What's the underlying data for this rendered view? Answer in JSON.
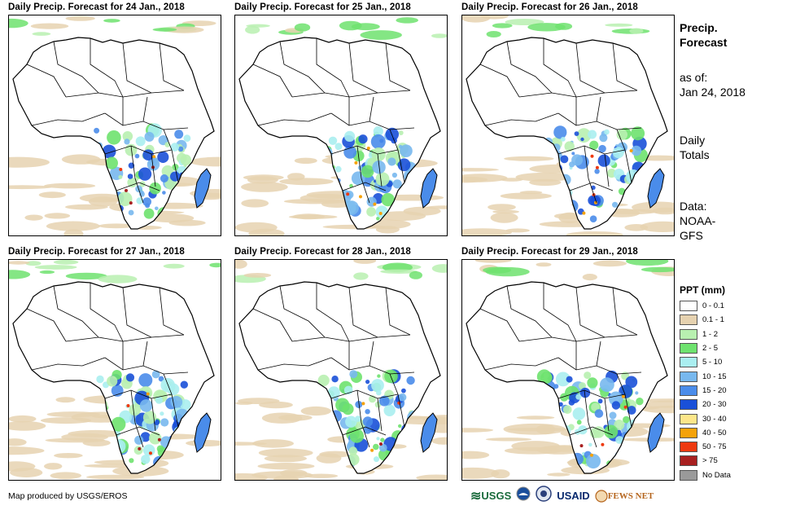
{
  "panels": [
    {
      "title": "Daily Precip. Forecast for 24 Jan., 2018"
    },
    {
      "title": "Daily Precip. Forecast for 25 Jan., 2018"
    },
    {
      "title": "Daily Precip. Forecast for 26 Jan., 2018"
    },
    {
      "title": "Daily Precip. Forecast for 27 Jan., 2018"
    },
    {
      "title": "Daily Precip. Forecast for 28 Jan., 2018"
    },
    {
      "title": "Daily Precip. Forecast for 29 Jan., 2018"
    }
  ],
  "side": {
    "title_line1": "Precip.",
    "title_line2": "Forecast",
    "asof_label": "as of:",
    "asof_date": "Jan 24, 2018",
    "daily_line1": "Daily",
    "daily_line2": "Totals",
    "data_line1": "Data:",
    "data_line2": "NOAA-",
    "data_line3": "GFS"
  },
  "legend": {
    "title": "PPT (mm)",
    "items": [
      {
        "label": "0 - 0.1",
        "color": "#ffffff"
      },
      {
        "label": "0.1 - 1",
        "color": "#e6d2b0"
      },
      {
        "label": "1 - 2",
        "color": "#b8f0b0"
      },
      {
        "label": "2 - 5",
        "color": "#6ee26e"
      },
      {
        "label": "5 - 10",
        "color": "#aaeef0"
      },
      {
        "label": "10 - 15",
        "color": "#78b8ee"
      },
      {
        "label": "15 - 20",
        "color": "#4a8cea"
      },
      {
        "label": "20 - 30",
        "color": "#1a50d8"
      },
      {
        "label": "30 - 40",
        "color": "#fde68a"
      },
      {
        "label": "40 - 50",
        "color": "#f5a20a"
      },
      {
        "label": "50 - 75",
        "color": "#ee3a10"
      },
      {
        "label": "> 75",
        "color": "#a82020"
      },
      {
        "label": "No Data",
        "color": "#9a9a9a"
      }
    ]
  },
  "credit": "Map produced by USGS/EROS",
  "logos": {
    "usgs": "USGS",
    "usaid": "USAID",
    "fewsnet": "FEWS NET"
  }
}
